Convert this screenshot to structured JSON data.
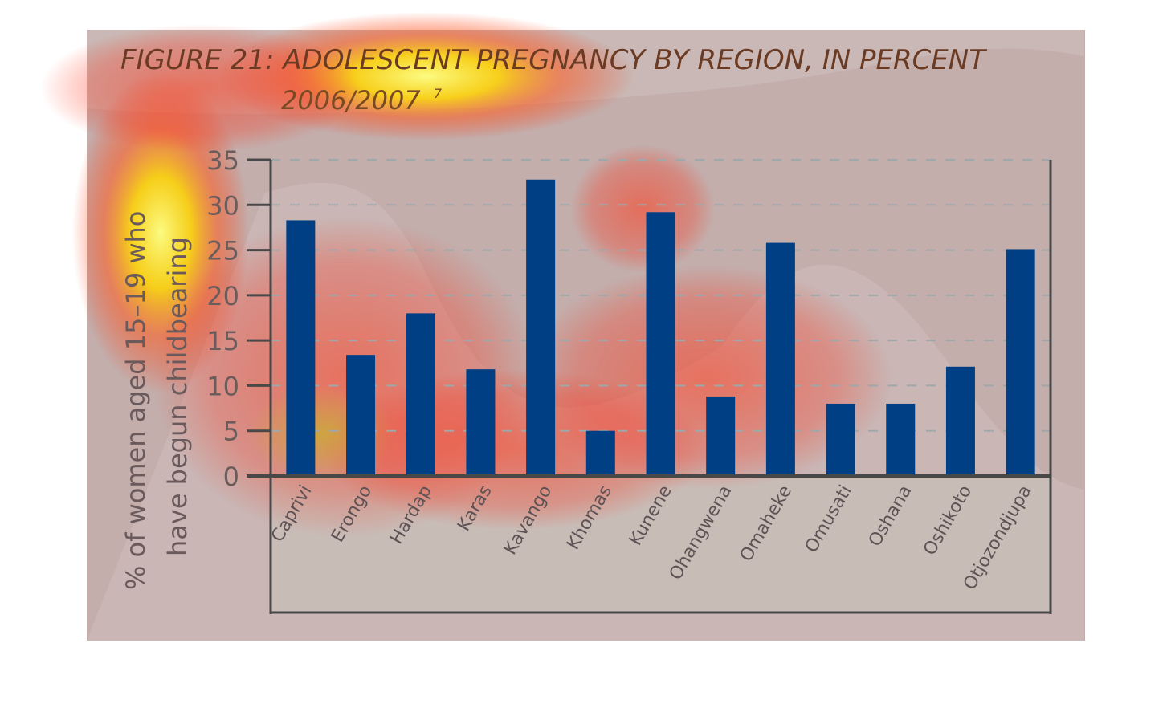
{
  "chart_data": {
    "type": "bar",
    "title": "FIGURE 21: ADOLESCENT PREGNANCY BY REGION, IN PERCENT",
    "subtitle": "2006/2007",
    "subtitle_superscript": "7",
    "ylabel_line1": "% of women aged 15–19 who",
    "ylabel_line2": "have begun childbearing",
    "xlabel": "",
    "ylim": [
      0,
      35
    ],
    "yticks": [
      0,
      5,
      10,
      15,
      20,
      25,
      30,
      35
    ],
    "grid": "horizontal dashed",
    "categories": [
      "Caprivi",
      "Erongo",
      "Hardap",
      "Karas",
      "Kavango",
      "Khomas",
      "Kunene",
      "Ohangwena",
      "Omaheke",
      "Omusati",
      "Oshana",
      "Oshikoto",
      "Otjozondjupa"
    ],
    "values": [
      28.3,
      13.4,
      18.0,
      11.8,
      32.8,
      5.0,
      29.2,
      8.8,
      25.8,
      8.0,
      8.0,
      12.1,
      25.1
    ],
    "colors": {
      "bar": "#003f84",
      "background": "#c4b0ae",
      "axis": "#484848",
      "grid": "#9fa7a9",
      "title": "#5e3a24"
    }
  }
}
